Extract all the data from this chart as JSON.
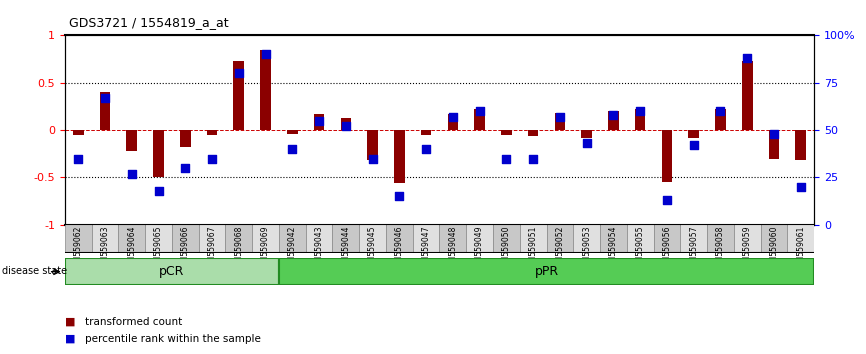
{
  "title": "GDS3721 / 1554819_a_at",
  "samples": [
    "GSM559062",
    "GSM559063",
    "GSM559064",
    "GSM559065",
    "GSM559066",
    "GSM559067",
    "GSM559068",
    "GSM559069",
    "GSM559042",
    "GSM559043",
    "GSM559044",
    "GSM559045",
    "GSM559046",
    "GSM559047",
    "GSM559048",
    "GSM559049",
    "GSM559050",
    "GSM559051",
    "GSM559052",
    "GSM559053",
    "GSM559054",
    "GSM559055",
    "GSM559056",
    "GSM559057",
    "GSM559058",
    "GSM559059",
    "GSM559060",
    "GSM559061"
  ],
  "transformed_count": [
    -0.05,
    0.4,
    -0.22,
    -0.5,
    -0.18,
    -0.05,
    0.73,
    0.85,
    -0.04,
    0.17,
    0.13,
    -0.32,
    -0.56,
    -0.05,
    0.17,
    0.22,
    -0.05,
    -0.06,
    0.18,
    -0.08,
    0.2,
    0.22,
    -0.55,
    -0.08,
    0.22,
    0.73,
    -0.3,
    -0.32
  ],
  "percentile_rank": [
    35,
    67,
    27,
    18,
    30,
    35,
    80,
    90,
    40,
    55,
    52,
    35,
    15,
    40,
    57,
    60,
    35,
    35,
    57,
    43,
    58,
    60,
    13,
    42,
    60,
    88,
    48,
    20
  ],
  "pcr_count": 8,
  "ppr_count": 20,
  "bar_color": "#8B0000",
  "dot_color": "#0000CD",
  "pcr_color": "#90EE90",
  "ppr_color": "#32CD32",
  "zero_line_color": "#CC0000",
  "yticks_left": [
    -1,
    -0.5,
    0,
    0.5,
    1
  ],
  "yticks_right": [
    0,
    25,
    50,
    75,
    100
  ],
  "right_tick_labels": [
    "0",
    "25",
    "50",
    "75",
    "100%"
  ],
  "hlines": [
    -0.5,
    0.5
  ],
  "legend_red": "transformed count",
  "legend_blue": "percentile rank within the sample"
}
